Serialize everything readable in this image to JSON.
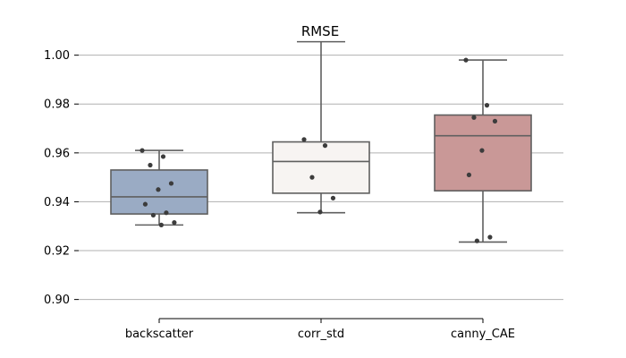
{
  "chart_data": {
    "type": "box",
    "title": "RMSE",
    "xlabel": "",
    "ylabel": "",
    "ylim": [
      0.894,
      1.005
    ],
    "yticks": [
      0.9,
      0.92,
      0.94,
      0.96,
      0.98,
      1.0
    ],
    "ytick_labels": [
      "0.90",
      "0.92",
      "0.94",
      "0.96",
      "0.98",
      "1.00"
    ],
    "grid": "horizontal",
    "categories": [
      "backscatter",
      "corr_std",
      "canny_CAE"
    ],
    "colors": [
      "#9aabc4",
      "#f7f4f2",
      "#c99897"
    ],
    "boxes": [
      {
        "q1": 0.935,
        "median": 0.942,
        "q3": 0.953,
        "whisker_low": 0.9305,
        "whisker_high": 0.961
      },
      {
        "q1": 0.9435,
        "median": 0.9565,
        "q3": 0.9645,
        "whisker_low": 0.9355,
        "whisker_high": 1.0055
      },
      {
        "q1": 0.9445,
        "median": 0.967,
        "q3": 0.9755,
        "whisker_low": 0.9235,
        "whisker_high": 0.998
      }
    ],
    "points": [
      [
        0.961,
        0.9585,
        0.955,
        0.9475,
        0.945,
        0.939,
        0.9355,
        0.9345,
        0.9315,
        0.9305
      ],
      [
        0.9655,
        0.963,
        0.95,
        0.9415,
        0.9358
      ],
      [
        0.998,
        0.9795,
        0.9745,
        0.973,
        0.961,
        0.951,
        0.9255,
        0.924
      ]
    ]
  }
}
